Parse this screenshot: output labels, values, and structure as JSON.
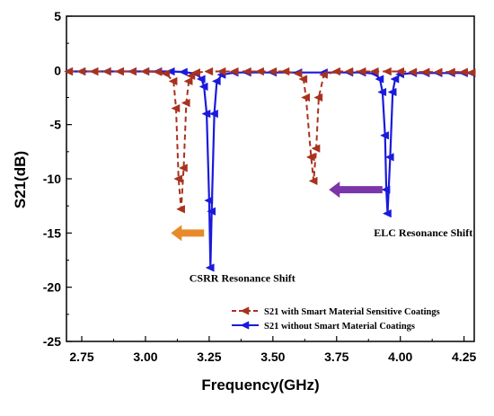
{
  "chart_data": {
    "type": "line",
    "xlabel": "Frequency(GHz)",
    "ylabel": "S21(dB)",
    "xlim": [
      2.69,
      4.29
    ],
    "ylim": [
      -25,
      5
    ],
    "x_ticks": [
      "2.75",
      "3.00",
      "3.25",
      "3.50",
      "3.75",
      "4.00",
      "4.25"
    ],
    "x_tick_values": [
      2.75,
      3.0,
      3.25,
      3.5,
      3.75,
      4.0,
      4.25
    ],
    "y_ticks": [
      "5",
      "0",
      "-5",
      "-10",
      "-15",
      "-20",
      "-25"
    ],
    "y_tick_values": [
      5,
      0,
      -5,
      -10,
      -15,
      -20,
      -25
    ],
    "grid": false,
    "legend_position": "bottom-right",
    "series": [
      {
        "name": "S21 with Smart Material Sensitive Coatings",
        "color": "#a8321e",
        "line_style": "dashed",
        "marker": "left-triangle",
        "x": [
          2.7,
          2.75,
          2.8,
          2.85,
          2.9,
          2.95,
          3.0,
          3.05,
          3.08,
          3.11,
          3.12,
          3.13,
          3.14,
          3.15,
          3.16,
          3.17,
          3.18,
          3.2,
          3.25,
          3.3,
          3.35,
          3.4,
          3.45,
          3.5,
          3.55,
          3.6,
          3.62,
          3.63,
          3.65,
          3.66,
          3.67,
          3.68,
          3.7,
          3.75,
          3.8,
          3.85,
          3.9,
          3.95,
          4.0,
          4.05,
          4.1,
          4.15,
          4.2,
          4.25,
          4.28
        ],
        "y": [
          -0.1,
          -0.1,
          -0.1,
          -0.1,
          -0.1,
          -0.1,
          -0.1,
          -0.15,
          -0.3,
          -1.0,
          -3.5,
          -10.0,
          -12.8,
          -9.0,
          -3.0,
          -1.0,
          -0.5,
          -0.2,
          -0.1,
          -0.1,
          -0.1,
          -0.1,
          -0.1,
          -0.1,
          -0.1,
          -0.3,
          -0.8,
          -2.5,
          -8.0,
          -10.2,
          -7.2,
          -2.5,
          -0.4,
          -0.1,
          -0.1,
          -0.1,
          -0.1,
          -0.1,
          -0.1,
          -0.15,
          -0.15,
          -0.15,
          -0.15,
          -0.15,
          -0.2
        ]
      },
      {
        "name": "S21 without Smart Material Coatings",
        "color": "#1a1adc",
        "line_style": "solid",
        "marker": "left-triangle",
        "x": [
          2.7,
          2.75,
          2.8,
          2.85,
          2.9,
          2.95,
          3.0,
          3.05,
          3.1,
          3.15,
          3.2,
          3.22,
          3.23,
          3.24,
          3.25,
          3.255,
          3.26,
          3.27,
          3.28,
          3.3,
          3.35,
          3.4,
          3.5,
          3.6,
          3.7,
          3.8,
          3.85,
          3.9,
          3.92,
          3.93,
          3.94,
          3.945,
          3.95,
          3.96,
          3.97,
          3.98,
          4.0,
          4.05,
          4.1,
          4.15,
          4.2,
          4.25,
          4.28
        ],
        "y": [
          -0.1,
          -0.1,
          -0.1,
          -0.1,
          -0.1,
          -0.1,
          -0.1,
          -0.1,
          -0.1,
          -0.15,
          -0.3,
          -0.8,
          -1.5,
          -4.0,
          -12.0,
          -18.2,
          -13.0,
          -4.0,
          -1.0,
          -0.4,
          -0.2,
          -0.2,
          -0.2,
          -0.2,
          -0.2,
          -0.2,
          -0.2,
          -0.3,
          -0.8,
          -2.0,
          -6.0,
          -11.0,
          -13.2,
          -8.0,
          -2.0,
          -0.8,
          -0.35,
          -0.25,
          -0.25,
          -0.25,
          -0.25,
          -0.25,
          -0.25
        ]
      }
    ],
    "annotations": [
      {
        "text": "CSRR Resonance Shift",
        "x": 3.38,
        "y": -19.5
      },
      {
        "text": "ELC Resonance Shift",
        "x": 4.09,
        "y": -15.3
      }
    ],
    "shift_arrows": [
      {
        "from": 3.23,
        "to": 3.1,
        "y": -15.0,
        "color": "#e88a2a"
      },
      {
        "from": 3.93,
        "to": 3.72,
        "y": -11.0,
        "color": "#7a35a8"
      }
    ]
  }
}
